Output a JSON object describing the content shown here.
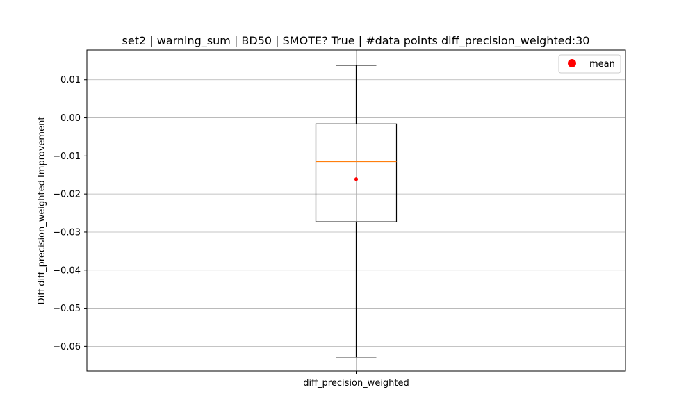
{
  "chart_data": {
    "type": "box",
    "title": "set2 | warning_sum | BD50 | SMOTE? True | #data points diff_precision_weighted:30",
    "xlabel": "",
    "ylabel": "Diff diff_precision_weighted Improvement",
    "categories": [
      "diff_precision_weighted"
    ],
    "ylim": [
      -0.0665,
      0.0178
    ],
    "yticks": [
      0.01,
      0.0,
      -0.01,
      -0.02,
      -0.03,
      -0.04,
      -0.05,
      -0.06
    ],
    "ytick_labels": [
      "0.01",
      "0.00",
      "−0.01",
      "−0.02",
      "−0.03",
      "−0.04",
      "−0.05",
      "−0.06"
    ],
    "grid": true,
    "series": [
      {
        "name": "diff_precision_weighted",
        "whisker_low": -0.0628,
        "q1": -0.0273,
        "median": -0.0115,
        "q3": -0.0016,
        "whisker_high": 0.0138,
        "mean": -0.0161,
        "n": 30
      }
    ],
    "legend": {
      "position": "top-right",
      "entries": [
        {
          "label": "mean",
          "color": "#ff0000"
        }
      ]
    },
    "colors": {
      "box": "#000000",
      "median": "#ff7f0e",
      "mean": "#ff0000",
      "grid": "#b0b0b0"
    }
  }
}
